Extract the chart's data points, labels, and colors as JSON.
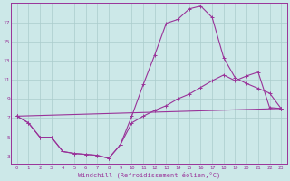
{
  "background_color": "#cce8e8",
  "grid_color": "#aacccc",
  "line_color": "#993399",
  "xlabel": "Windchill (Refroidissement éolien,°C)",
  "xlabel_color": "#993399",
  "ylabel_ticks": [
    3,
    5,
    7,
    9,
    11,
    13,
    15,
    17
  ],
  "xticks": [
    0,
    1,
    2,
    3,
    4,
    5,
    6,
    7,
    8,
    9,
    10,
    11,
    12,
    13,
    14,
    15,
    16,
    17,
    18,
    19,
    20,
    21,
    22,
    23
  ],
  "xlim": [
    -0.5,
    23.5
  ],
  "ylim": [
    2.2,
    19.0
  ],
  "curve1_x": [
    0,
    1,
    2,
    3,
    4,
    5,
    6,
    7,
    8,
    9,
    10,
    11,
    12,
    13,
    14,
    15,
    16,
    17,
    18,
    19,
    20,
    21,
    22,
    23
  ],
  "curve1_y": [
    7.2,
    6.5,
    5.0,
    5.0,
    3.5,
    3.3,
    3.2,
    3.1,
    2.8,
    4.2,
    7.2,
    10.5,
    13.6,
    16.9,
    17.3,
    18.4,
    18.7,
    17.5,
    13.3,
    11.2,
    10.6,
    10.1,
    9.6,
    8.0
  ],
  "curve2_x": [
    0,
    1,
    2,
    3,
    4,
    5,
    6,
    7,
    8,
    9,
    10,
    11,
    12,
    13,
    14,
    15,
    16,
    17,
    18,
    19,
    20,
    21,
    22,
    23
  ],
  "curve2_y": [
    7.2,
    6.5,
    5.0,
    5.0,
    3.5,
    3.3,
    3.2,
    3.1,
    2.8,
    4.2,
    6.5,
    7.2,
    7.8,
    8.3,
    9.0,
    9.5,
    10.2,
    10.9,
    11.5,
    10.9,
    11.4,
    11.8,
    8.1,
    8.0
  ],
  "curve3_x": [
    0,
    23
  ],
  "curve3_y": [
    7.2,
    8.0
  ],
  "curve4_x": [
    0,
    23
  ],
  "curve4_y": [
    7.2,
    8.0
  ]
}
